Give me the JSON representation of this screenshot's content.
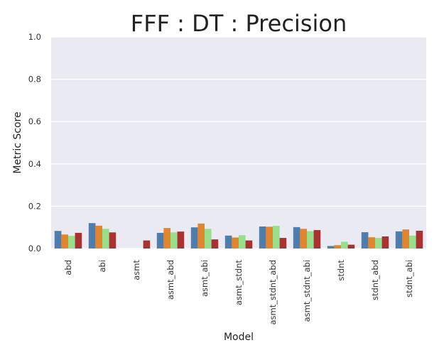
{
  "chart_data": {
    "type": "bar",
    "title": "FFF : DT : Precision",
    "xlabel": "Model",
    "ylabel": "Metric Score",
    "ylim": [
      0,
      1.0
    ],
    "yticks": [
      "0.0",
      "0.2",
      "0.4",
      "0.6",
      "0.8",
      "1.0"
    ],
    "grid": true,
    "legend": "none",
    "categories": [
      "abd",
      "abi",
      "asmt",
      "asmt_abd",
      "asmt_abi",
      "asmt_stdnt",
      "asmt_stdnt_abd",
      "asmt_stdnt_abi",
      "stdnt",
      "stdnt_abd",
      "stdnt_abi"
    ],
    "series": [
      {
        "color": "#4c7fb0",
        "values": [
          0.083,
          0.12,
          0.0,
          0.074,
          0.1,
          0.061,
          0.104,
          0.101,
          0.012,
          0.077,
          0.081
        ]
      },
      {
        "color": "#e6842a",
        "values": [
          0.066,
          0.108,
          0.0,
          0.097,
          0.118,
          0.052,
          0.103,
          0.093,
          0.016,
          0.053,
          0.09
        ]
      },
      {
        "color": "#98df8a",
        "values": [
          0.06,
          0.093,
          0.0,
          0.076,
          0.093,
          0.063,
          0.107,
          0.082,
          0.032,
          0.05,
          0.061
        ]
      },
      {
        "color": "#a83232",
        "values": [
          0.074,
          0.076,
          0.038,
          0.08,
          0.043,
          0.038,
          0.05,
          0.087,
          0.018,
          0.057,
          0.084
        ]
      }
    ]
  }
}
